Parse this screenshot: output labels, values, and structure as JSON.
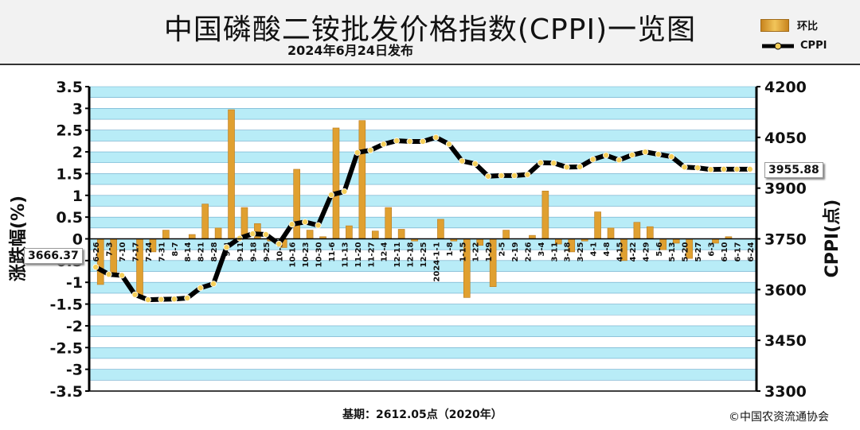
{
  "header": {
    "title": "中国磷酸二铵批发价格指数(CPPI)一览图",
    "subtitle": "2024年6月24日发布"
  },
  "legend": {
    "bar_label": "环比",
    "line_label": "CPPI"
  },
  "labels": {
    "start_value": "3666.37",
    "end_value": "3955.88"
  },
  "footer": {
    "base_note": "基期：2612.05点（2020年）",
    "copyright": "©中国农资流通协会"
  },
  "colors": {
    "bar": "#e0a030",
    "bar_edge": "#b87a20",
    "line": "#000000",
    "marker": "#f5cf5a",
    "stripe": "#b8ecf7",
    "grid": "#6aa9c9"
  },
  "chart_data": {
    "type": "bar+line",
    "categories": [
      "6-26",
      "7-3",
      "7-10",
      "7-17",
      "7-24",
      "7-31",
      "8-7",
      "8-14",
      "8-21",
      "8-28",
      "9-4",
      "9-11",
      "9-18",
      "9-25",
      "10-9",
      "10-16",
      "10-23",
      "10-30",
      "11-6",
      "11-13",
      "11-20",
      "11-27",
      "12-4",
      "12-11",
      "12-18",
      "12-25",
      "2024-1-1",
      "1-8",
      "1-15",
      "1-22",
      "1-29",
      "2-5",
      "2-19",
      "2-26",
      "3-4",
      "3-11",
      "3-18",
      "3-25",
      "4-1",
      "4-8",
      "4-15",
      "4-22",
      "4-29",
      "5-6",
      "5-13",
      "5-20",
      "5-27",
      "6-3",
      "6-10",
      "6-17",
      "6-24"
    ],
    "series": [
      {
        "name": "环比",
        "axis": "left",
        "type": "bar",
        "values": [
          -1.05,
          -0.8,
          0.0,
          -1.3,
          -0.3,
          0.2,
          0.0,
          0.1,
          0.8,
          0.25,
          2.97,
          0.72,
          0.35,
          -0.05,
          -0.2,
          1.6,
          0.2,
          0.05,
          2.55,
          0.3,
          2.72,
          0.18,
          0.72,
          0.22,
          -0.05,
          0.0,
          0.45,
          -0.05,
          -1.35,
          -0.15,
          -1.1,
          0.2,
          0.0,
          0.08,
          1.1,
          -0.12,
          -0.3,
          -0.05,
          0.62,
          0.25,
          -0.5,
          0.38,
          0.28,
          -0.25,
          -0.1,
          -0.45,
          0.0,
          -0.1,
          0.05,
          0.0,
          0.0
        ]
      },
      {
        "name": "CPPI",
        "axis": "right",
        "type": "line",
        "values": [
          3666.37,
          3645,
          3642,
          3585,
          3570,
          3571,
          3572,
          3575,
          3605,
          3617,
          3725,
          3752,
          3765,
          3763,
          3735,
          3793,
          3800,
          3790,
          3880,
          3890,
          4005,
          4012,
          4030,
          4040,
          4038,
          4038,
          4050,
          4030,
          3980,
          3972,
          3935,
          3937,
          3937,
          3940,
          3975,
          3974,
          3962,
          3963,
          3985,
          3997,
          3983,
          3998,
          4007,
          4000,
          3993,
          3962,
          3960,
          3955,
          3956,
          3956,
          3955.88
        ]
      }
    ],
    "y_left": {
      "label": "涨跌幅(%)",
      "min": -3.5,
      "max": 3.5,
      "ticks": [
        "3.5",
        "3",
        "2.5",
        "2",
        "1.5",
        "1",
        "0.5",
        "0",
        "-0.5",
        "-1",
        "-1.5",
        "-2",
        "-2.5",
        "-3",
        "-3.5"
      ]
    },
    "y_right": {
      "label": "CPPI(点)",
      "min": 3300,
      "max": 4200,
      "ticks": [
        "4200",
        "4050",
        "3900",
        "3750",
        "3600",
        "3450",
        "3300"
      ]
    }
  }
}
